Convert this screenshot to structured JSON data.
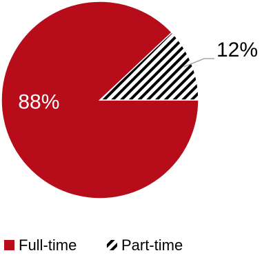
{
  "chart_data": {
    "type": "pie",
    "title": "",
    "slices": [
      {
        "label": "Full-time",
        "value": 88,
        "display": "88%",
        "color": "#b70d1b",
        "pattern": "solid"
      },
      {
        "label": "Part-time",
        "value": 12,
        "display": "12%",
        "color": "#000000",
        "pattern": "diagonal-hatch"
      }
    ],
    "legend": {
      "position": "bottom-left",
      "entries": [
        "Full-time",
        "Part-time"
      ]
    },
    "leader_line_color": "#a6a6a6"
  }
}
